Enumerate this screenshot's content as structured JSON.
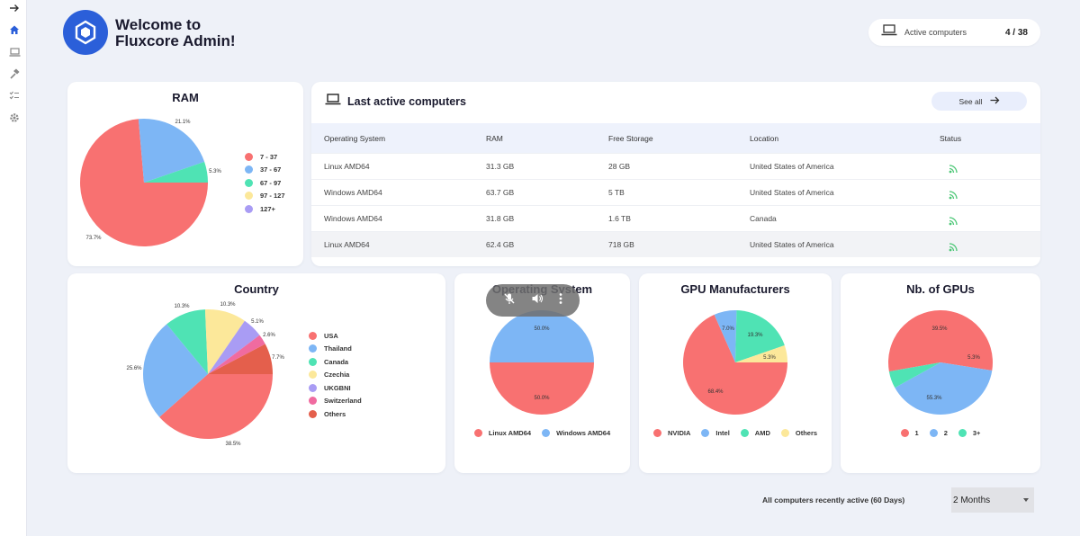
{
  "header": {
    "welcome_line1": "Welcome to",
    "welcome_line2": "Fluxcore Admin!",
    "active_label": "Active computers",
    "active_count": "4 / 38"
  },
  "sidebar": {
    "items": [
      "arrow-right-icon",
      "home-icon",
      "laptop-icon",
      "hammer-icon",
      "checklist-icon",
      "gear-icon"
    ]
  },
  "colors": {
    "red": "#f87171",
    "blue": "#7db6f5",
    "teal": "#4fe3b4",
    "yellow": "#fce89a",
    "purple": "#a99cf4",
    "pink": "#f06ba0",
    "darkred": "#e45f4c",
    "accent": "#2b5fd9"
  },
  "ram": {
    "title": "RAM",
    "legend": [
      "7 - 37",
      "37 - 67",
      "67 - 97",
      "97 - 127",
      "127+"
    ],
    "labels": [
      "73.7%",
      "21.1%",
      "5.3%"
    ]
  },
  "computers": {
    "title": "Last active computers",
    "see_all": "See all",
    "columns": [
      "Operating System",
      "RAM",
      "Free Storage",
      "Location",
      "Status"
    ],
    "rows": [
      {
        "os": "Linux AMD64",
        "ram": "31.3 GB",
        "storage": "28 GB",
        "location": "United States of America"
      },
      {
        "os": "Windows AMD64",
        "ram": "63.7 GB",
        "storage": "5 TB",
        "location": "United States of America"
      },
      {
        "os": "Windows AMD64",
        "ram": "31.8 GB",
        "storage": "1.6 TB",
        "location": "Canada"
      },
      {
        "os": "Linux AMD64",
        "ram": "62.4 GB",
        "storage": "718 GB",
        "location": "United States of America"
      }
    ]
  },
  "country": {
    "title": "Country",
    "legend": [
      "USA",
      "Thailand",
      "Canada",
      "Czechia",
      "UKGBNI",
      "Switzerland",
      "Others"
    ],
    "labels": [
      "38.5%",
      "25.6%",
      "10.3%",
      "10.3%",
      "5.1%",
      "2.6%",
      "7.7%"
    ]
  },
  "os": {
    "title": "Operating System",
    "legend": [
      "Linux AMD64",
      "Windows AMD64"
    ],
    "labels": [
      "50.0%",
      "50.0%"
    ]
  },
  "gpu": {
    "title": "GPU Manufacturers",
    "legend": [
      "NVIDIA",
      "Intel",
      "AMD",
      "Others"
    ],
    "labels": [
      "68.4%",
      "7.0%",
      "19.3%",
      "5.3%"
    ]
  },
  "ngpu": {
    "title": "Nb. of GPUs",
    "legend": [
      "1",
      "2",
      "3+"
    ],
    "labels": [
      "55.3%",
      "39.5%",
      "5.3%"
    ]
  },
  "footer": {
    "label": "All computers recently active (60 Days)",
    "select_value": "2 Months"
  },
  "chart_data": [
    {
      "type": "pie",
      "title": "RAM",
      "categories": [
        "7 - 37",
        "37 - 67",
        "67 - 97",
        "97 - 127",
        "127+"
      ],
      "values": [
        73.7,
        21.1,
        5.3,
        0,
        0
      ],
      "legend": "right"
    },
    {
      "type": "pie",
      "title": "Country",
      "categories": [
        "USA",
        "Thailand",
        "Canada",
        "Czechia",
        "UKGBNI",
        "Switzerland",
        "Others"
      ],
      "values": [
        38.5,
        25.6,
        10.3,
        10.3,
        5.1,
        2.6,
        7.7
      ],
      "legend": "right"
    },
    {
      "type": "pie",
      "title": "Operating System",
      "categories": [
        "Linux AMD64",
        "Windows AMD64"
      ],
      "values": [
        50.0,
        50.0
      ],
      "legend": "bottom"
    },
    {
      "type": "pie",
      "title": "GPU Manufacturers",
      "categories": [
        "NVIDIA",
        "Intel",
        "AMD",
        "Others"
      ],
      "values": [
        68.4,
        7.0,
        19.3,
        5.3
      ],
      "legend": "bottom"
    },
    {
      "type": "pie",
      "title": "Nb. of GPUs",
      "categories": [
        "1",
        "2",
        "3+"
      ],
      "values": [
        55.3,
        39.5,
        5.3
      ],
      "legend": "bottom"
    }
  ]
}
